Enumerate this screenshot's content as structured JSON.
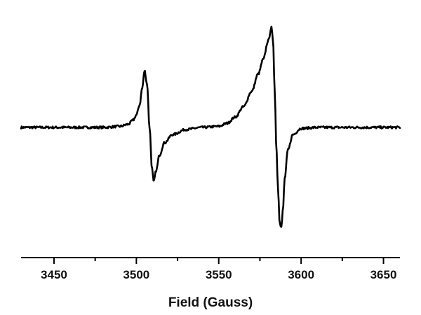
{
  "chart_data": {
    "type": "line",
    "title": "",
    "xlabel": "Field (Gauss)",
    "ylabel": "",
    "xlim": [
      3430,
      3660
    ],
    "ylim": [
      -1.0,
      1.0
    ],
    "y_axis_shown": false,
    "grid": false,
    "legend": "none",
    "line_color": "#000000",
    "x_ticks": [
      3450,
      3500,
      3550,
      3600,
      3650
    ],
    "x_tick_labels": [
      "3450",
      "3500",
      "3550",
      "3600",
      "3650"
    ],
    "series": [
      {
        "x": [
          3430,
          3440,
          3450,
          3460,
          3470,
          3480,
          3490,
          3495,
          3498,
          3500,
          3502,
          3503.5,
          3505,
          3506.5,
          3508,
          3509.5,
          3510.5,
          3512,
          3514,
          3517,
          3522,
          3530,
          3540,
          3550,
          3555,
          3560,
          3565,
          3570,
          3574,
          3577,
          3580,
          3582,
          3583,
          3584,
          3585,
          3586,
          3587,
          3588,
          3589,
          3590,
          3592,
          3595,
          3600,
          3610,
          3620,
          3630,
          3640,
          3650,
          3660
        ],
        "y": [
          0.0,
          0.0,
          0.0,
          0.0,
          0.0,
          0.0,
          0.01,
          0.03,
          0.07,
          0.12,
          0.22,
          0.38,
          0.55,
          0.42,
          0.0,
          -0.4,
          -0.53,
          -0.42,
          -0.27,
          -0.15,
          -0.07,
          -0.02,
          0.0,
          0.01,
          0.04,
          0.1,
          0.2,
          0.35,
          0.52,
          0.66,
          0.84,
          0.97,
          0.83,
          0.35,
          -0.2,
          -0.6,
          -0.92,
          -0.97,
          -0.8,
          -0.5,
          -0.22,
          -0.07,
          -0.01,
          0.0,
          0.0,
          0.0,
          0.0,
          0.0,
          0.0
        ]
      }
    ]
  }
}
